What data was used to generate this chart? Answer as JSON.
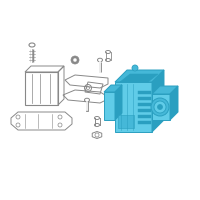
{
  "bg_color": "#ffffff",
  "hc": "#60cce8",
  "hd": "#2a9fc0",
  "hm": "#45b8d8",
  "hl": "#85ddf0",
  "oc": "#b0b0b0",
  "od": "#888888",
  "om": "#c0c0c0"
}
